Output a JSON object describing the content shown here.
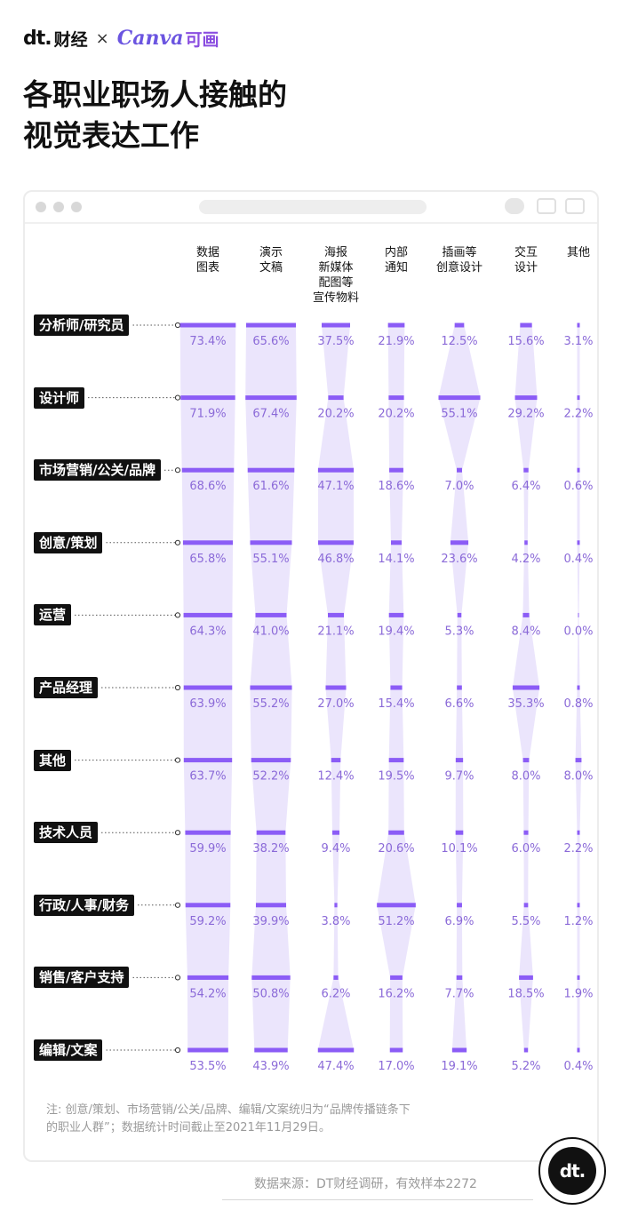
{
  "brand": {
    "dt": "dt.",
    "dt_cn": "财经",
    "times": "×",
    "canva": "Canva",
    "canva_cn": "可画"
  },
  "title_lines": [
    "各职业职场人接触的",
    "视觉表达工作"
  ],
  "chart_data": {
    "type": "table",
    "columns": [
      [
        "数据",
        "图表"
      ],
      [
        "演示",
        "文稿"
      ],
      [
        "海报",
        "新媒体",
        "配图等",
        "宣传物料"
      ],
      [
        "内部",
        "通知"
      ],
      [
        "插画等",
        "创意设计"
      ],
      [
        "交互",
        "设计"
      ],
      [
        "其他"
      ]
    ],
    "rows": [
      {
        "label": "分析师/研究员",
        "values": [
          73.4,
          65.6,
          37.5,
          21.9,
          12.5,
          15.6,
          3.1
        ]
      },
      {
        "label": "设计师",
        "values": [
          71.9,
          67.4,
          20.2,
          20.2,
          55.1,
          29.2,
          2.2
        ]
      },
      {
        "label": "市场营销/公关/品牌",
        "values": [
          68.6,
          61.6,
          47.1,
          18.6,
          7.0,
          6.4,
          0.6
        ]
      },
      {
        "label": "创意/策划",
        "values": [
          65.8,
          55.1,
          46.8,
          14.1,
          23.6,
          4.2,
          0.4
        ]
      },
      {
        "label": "运营",
        "values": [
          64.3,
          41.0,
          21.1,
          19.4,
          5.3,
          8.4,
          0.0
        ]
      },
      {
        "label": "产品经理",
        "values": [
          63.9,
          55.2,
          27.0,
          15.4,
          6.6,
          35.3,
          0.8
        ]
      },
      {
        "label": "其他",
        "values": [
          63.7,
          52.2,
          12.4,
          19.5,
          9.7,
          8.0,
          8.0
        ]
      },
      {
        "label": "技术人员",
        "values": [
          59.9,
          38.2,
          9.4,
          20.6,
          10.1,
          6.0,
          2.2
        ]
      },
      {
        "label": "行政/人事/财务",
        "values": [
          59.2,
          39.9,
          3.8,
          51.2,
          6.9,
          5.5,
          1.2
        ]
      },
      {
        "label": "销售/客户支持",
        "values": [
          54.2,
          50.8,
          6.2,
          16.2,
          7.7,
          18.5,
          1.9
        ]
      },
      {
        "label": "编辑/文案",
        "values": [
          53.5,
          43.9,
          47.4,
          17.0,
          19.1,
          5.2,
          0.4
        ]
      }
    ],
    "value_suffix": "%",
    "colors": {
      "bar": "#8b5cf6",
      "band": "#e4dcfb",
      "value": "#8b6ad8"
    }
  },
  "note_lines": [
    "注: 创意/策划、市场营销/公关/品牌、编辑/文案统归为“品牌传播链条下",
    "的职业人群”；数据统计时间截止至2021年11月29日。"
  ],
  "source": "数据来源：DT财经调研，有效样本2272",
  "logo": "dt."
}
